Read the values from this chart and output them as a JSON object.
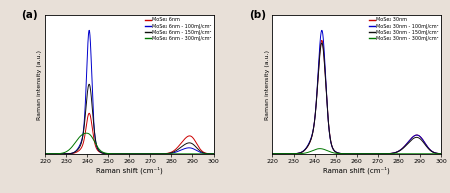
{
  "title_a": "(a)",
  "title_b": "(b)",
  "xlabel": "Raman shift (cm⁻¹)",
  "ylabel": "Raman intensity (a.u.)",
  "xmin": 220,
  "xmax": 300,
  "xticks": [
    220,
    230,
    240,
    250,
    260,
    270,
    280,
    290,
    300
  ],
  "legend_a": [
    "MoSe₂ 6nm",
    "MoSe₂ 6nm - 100mJ/cm²",
    "MoSe₂ 6nm - 150mJ/cm²",
    "MoSe₂ 6nm - 300mJ/cm²"
  ],
  "legend_b": [
    "MoSe₂ 30nm",
    "MoSe₂ 30nm - 100mJ/cm²",
    "MoSe₂ 30nm - 150mJ/cm²",
    "MoSe₂ 30nm - 300mJ/cm²"
  ],
  "colors": [
    "#cc0000",
    "#0000cc",
    "#111111",
    "#007700"
  ],
  "background_color": "#ffffff",
  "fig_facecolor": "#e8e0d8"
}
